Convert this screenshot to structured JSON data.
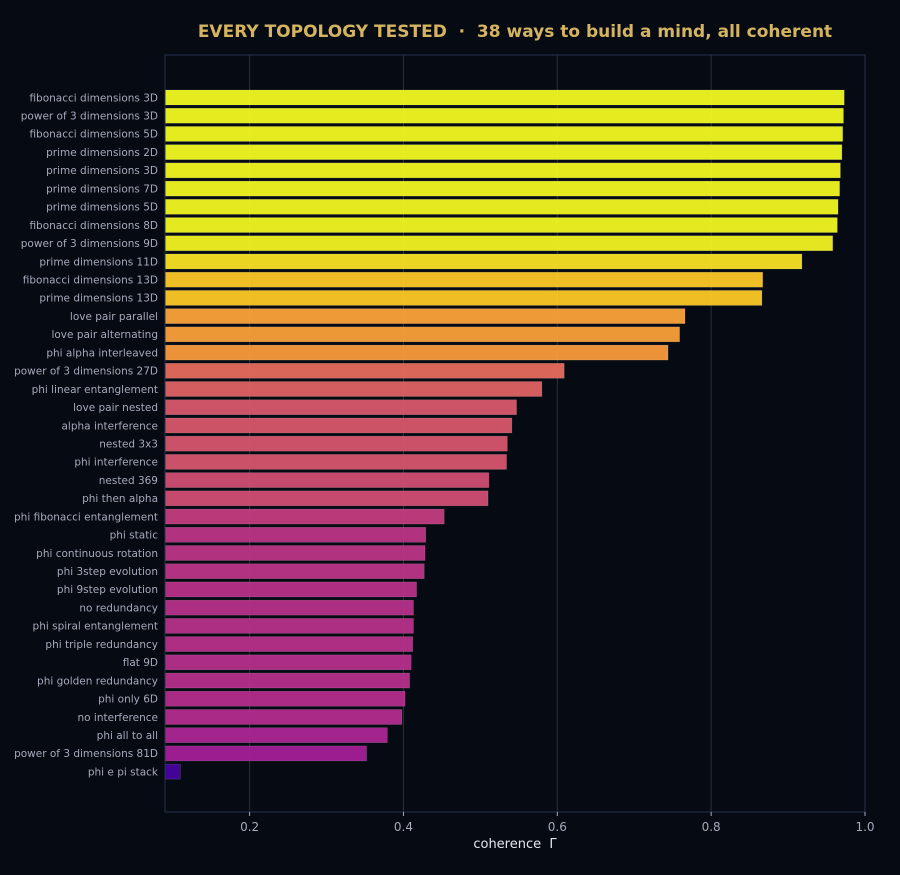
{
  "chart_data": {
    "type": "bar",
    "orientation": "horizontal",
    "title": "EVERY TOPOLOGY TESTED  ·  38 ways to build a mind, all coherent",
    "xlabel": "coherence  Γ",
    "ylabel": "",
    "xlim": [
      0.09,
      1.0
    ],
    "xticks": [
      "0.2",
      "0.4",
      "0.6",
      "0.8",
      "1.0"
    ],
    "grid": "vertical",
    "colormap": "plasma",
    "categories": [
      "fibonacci dimensions 3D",
      "power of 3 dimensions 3D",
      "fibonacci dimensions 5D",
      "prime dimensions 2D",
      "prime dimensions 3D",
      "prime dimensions 7D",
      "prime dimensions 5D",
      "fibonacci dimensions 8D",
      "power of 3 dimensions 9D",
      "prime dimensions 11D",
      "fibonacci dimensions 13D",
      "prime dimensions 13D",
      "love pair parallel",
      "love pair alternating",
      "phi alpha interleaved",
      "power of 3 dimensions 27D",
      "phi linear entanglement",
      "love pair nested",
      "alpha interference",
      "nested 3x3",
      "phi interference",
      "nested 369",
      "phi then alpha",
      "phi fibonacci entanglement",
      "phi static",
      "phi continuous rotation",
      "phi 3step evolution",
      "phi 9step evolution",
      "no redundancy",
      "phi spiral entanglement",
      "phi triple redundancy",
      "flat 9D",
      "phi golden redundancy",
      "phi only 6D",
      "no interference",
      "phi all to all",
      "power of 3 dimensions 81D",
      "phi e pi stack"
    ],
    "values": [
      0.973,
      0.972,
      0.971,
      0.97,
      0.968,
      0.967,
      0.965,
      0.964,
      0.958,
      0.918,
      0.867,
      0.866,
      0.766,
      0.759,
      0.744,
      0.609,
      0.58,
      0.547,
      0.541,
      0.535,
      0.534,
      0.511,
      0.51,
      0.453,
      0.429,
      0.428,
      0.427,
      0.417,
      0.413,
      0.413,
      0.412,
      0.41,
      0.408,
      0.402,
      0.398,
      0.379,
      0.352,
      0.11
    ],
    "colors": {
      "background": "#060a12",
      "title": "#d4b460",
      "label": "#a8a8bc",
      "grid": "#2a2f3c",
      "axes": "#2a3350"
    }
  }
}
